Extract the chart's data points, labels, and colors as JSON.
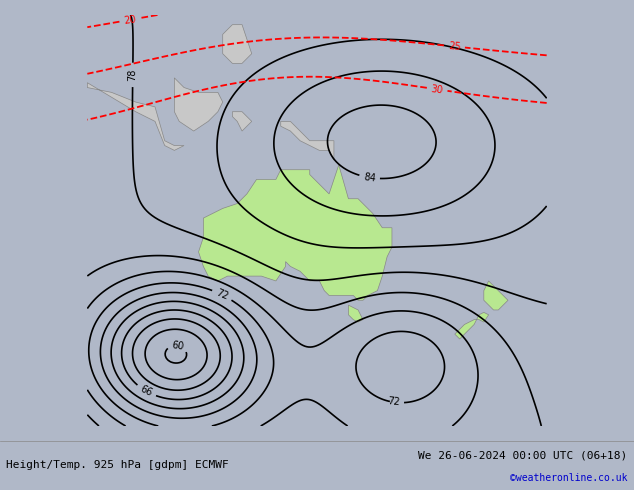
{
  "title_left": "Height/Temp. 925 hPa [gdpm] ECMWF",
  "title_right": "We 26-06-2024 00:00 UTC (06+18)",
  "credit": "©weatheronline.co.uk",
  "background_color": "#c8d0dc",
  "land_color": "#c8c8c8",
  "australia_color": "#b8e890",
  "fig_width": 6.34,
  "fig_height": 4.9,
  "dpi": 100,
  "footer_text_color": "#000000",
  "credit_color": "#0000cc"
}
